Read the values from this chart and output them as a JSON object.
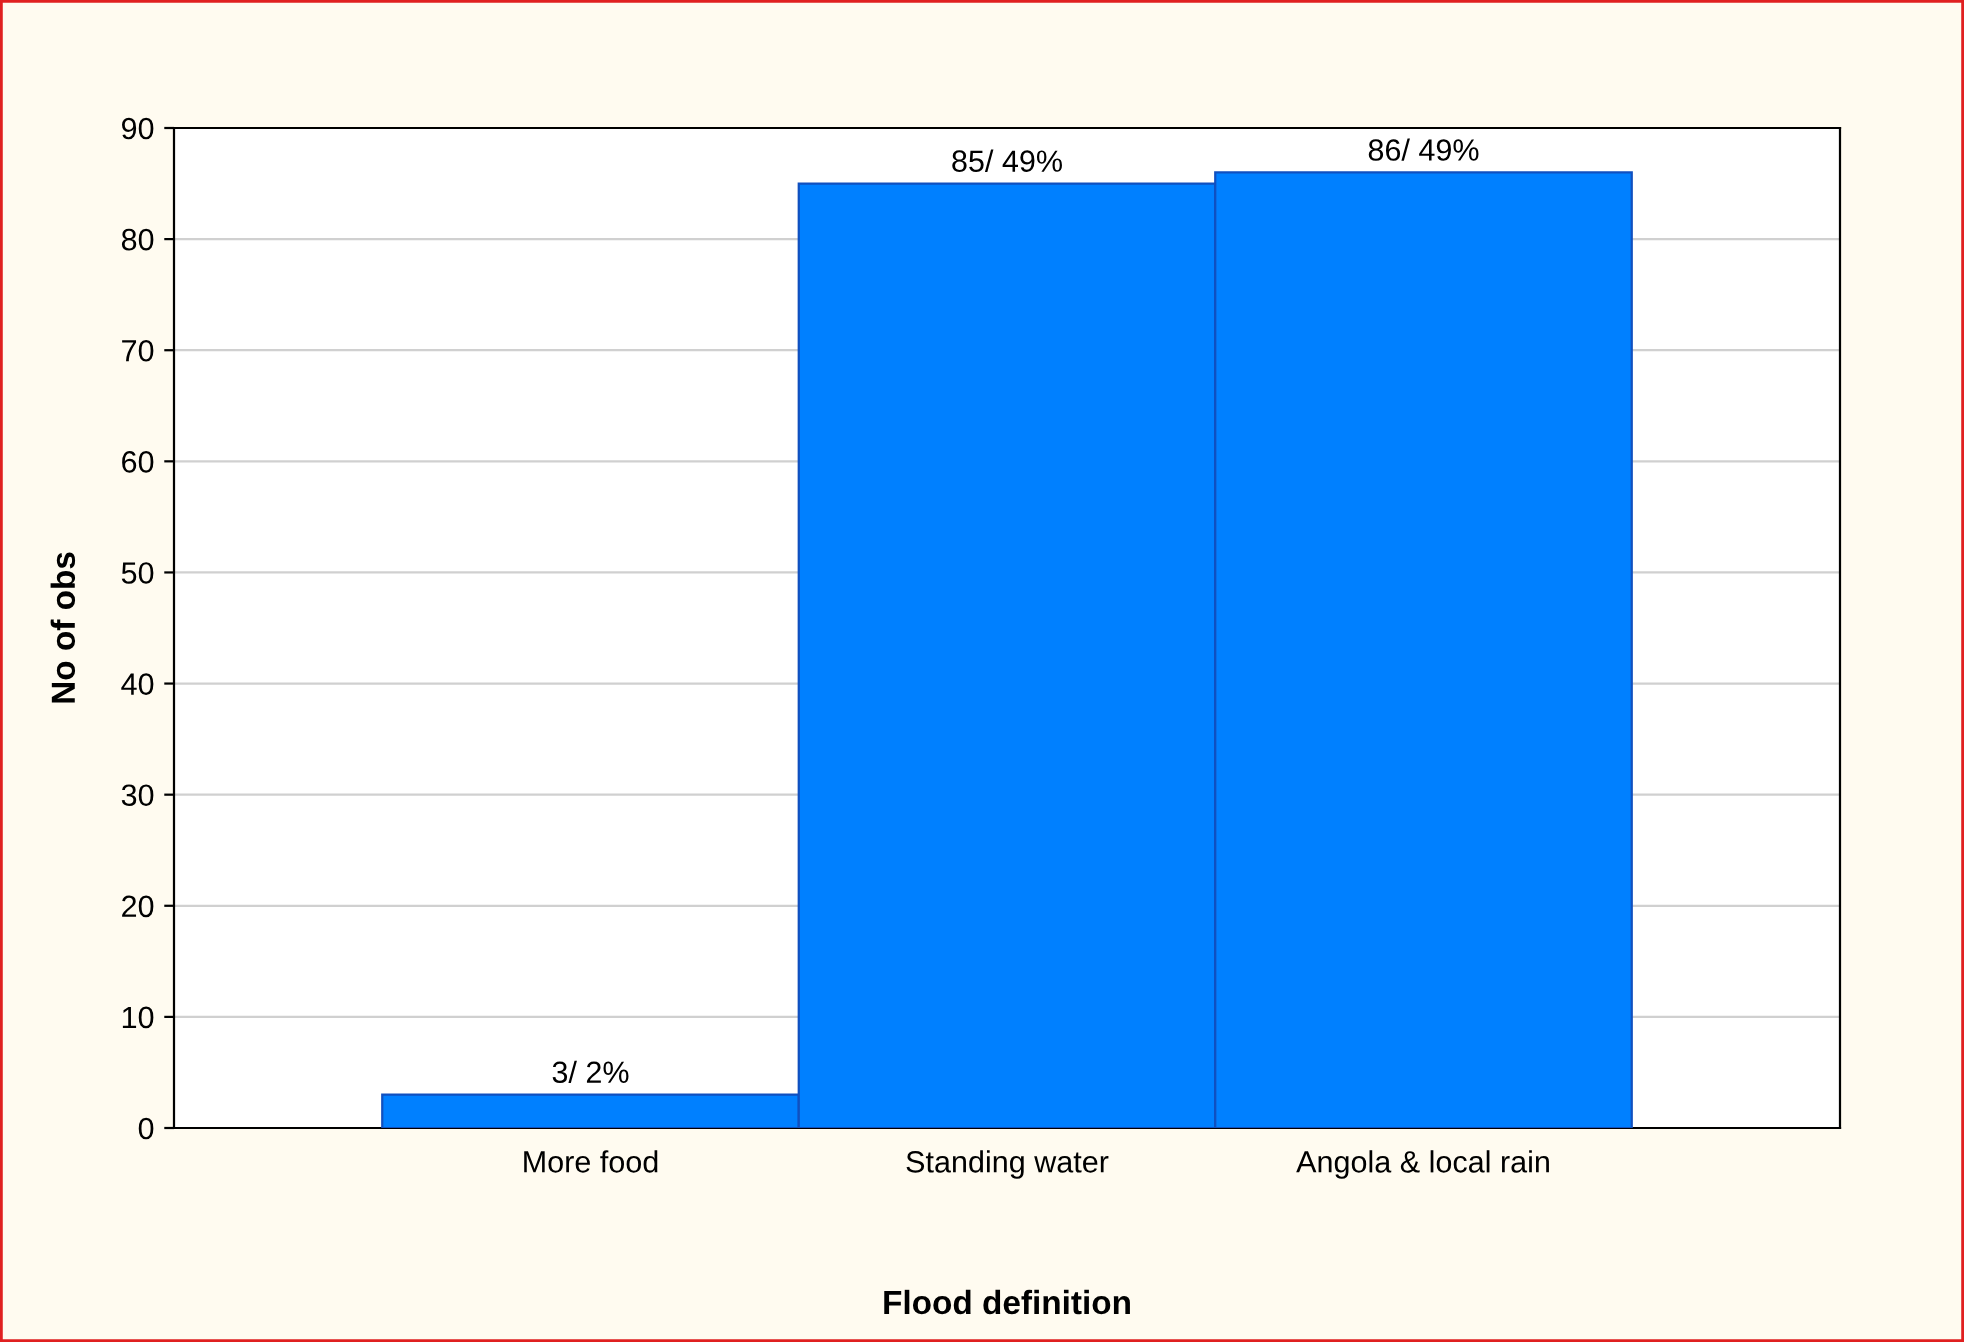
{
  "chart_data": {
    "type": "bar",
    "xlabel": "Flood definition",
    "ylabel": "No of obs",
    "categories": [
      "More food",
      "Standing water",
      "Angola & local rain"
    ],
    "values": [
      3,
      85,
      86
    ],
    "color": "#0080ff",
    "value_labels": [
      "3/ 2%",
      "85/ 49%",
      "86/ 49%"
    ],
    "ylim": [
      0,
      90
    ],
    "yticks": [
      0,
      10,
      20,
      30,
      40,
      50,
      60,
      70,
      80,
      90
    ],
    "grid": "y",
    "legend": false
  }
}
